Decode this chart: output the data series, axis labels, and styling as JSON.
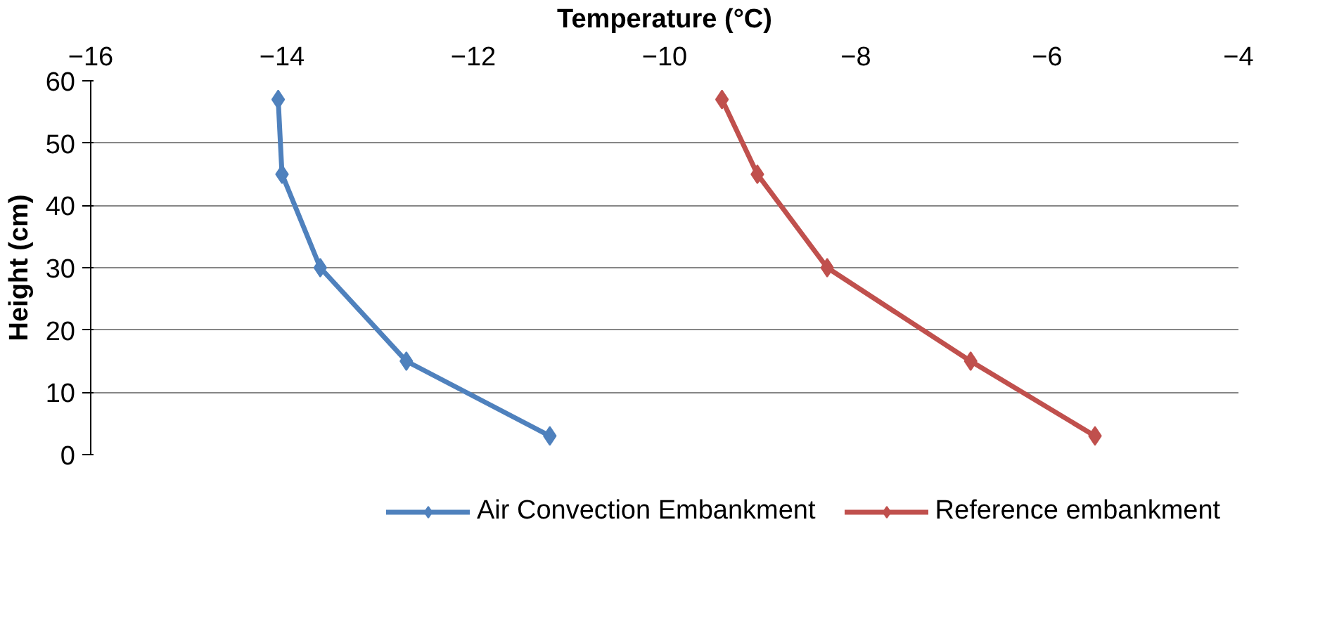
{
  "chart_data": {
    "type": "line",
    "xlabel": "Temperature (°C)",
    "ylabel": "Height (cm)",
    "xlim": [
      -16,
      -4
    ],
    "xticks": [
      -16,
      -14,
      -12,
      -10,
      -8,
      -6,
      -4
    ],
    "ylim": [
      0,
      60
    ],
    "yticks": [
      0,
      10,
      20,
      30,
      40,
      50,
      60
    ],
    "grid": "y",
    "legend": "bottom",
    "marker": "diamond",
    "line_style": "solid",
    "series": [
      {
        "name": "Air Convection Embankment",
        "color": "#4f81bd",
        "x": [
          -14.04,
          -14.0,
          -13.6,
          -12.7,
          -11.2
        ],
        "values": [
          57,
          45,
          30,
          15,
          3
        ]
      },
      {
        "name": "Reference embankment",
        "color": "#c0504d",
        "x": [
          -9.4,
          -9.03,
          -8.3,
          -6.8,
          -5.5
        ],
        "values": [
          57,
          45,
          30,
          15,
          3
        ]
      }
    ]
  }
}
